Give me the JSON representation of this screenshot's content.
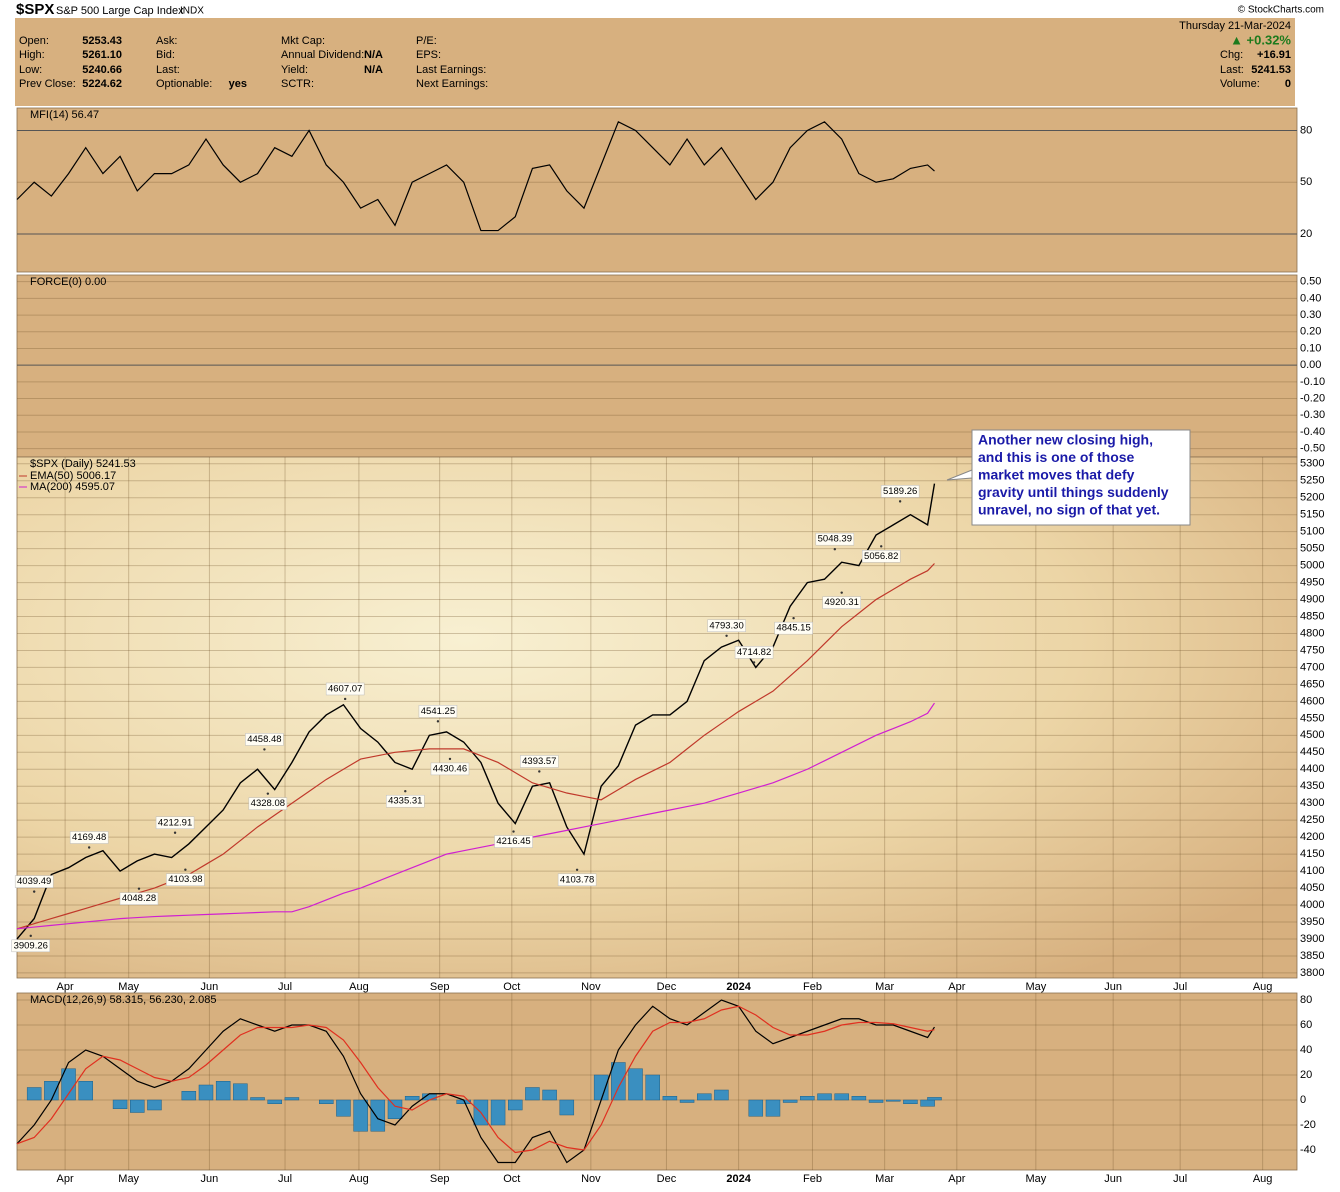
{
  "header": {
    "symbol": "$SPX",
    "name": "S&P 500 Large Cap Index",
    "exchange": "INDX",
    "columns": [
      [
        {
          "label": "Open:",
          "value": "5253.43"
        },
        {
          "label": "High:",
          "value": "5261.10"
        },
        {
          "label": "Low:",
          "value": "5240.66"
        },
        {
          "label": "Prev Close:",
          "value": "5224.62"
        }
      ],
      [
        {
          "label": "Ask:"
        },
        {
          "label": "Bid:"
        },
        {
          "label": "Last:"
        },
        {
          "label": "Optionable:",
          "value": "yes"
        }
      ],
      [
        {
          "label": "Mkt Cap:"
        },
        {
          "label": "Annual Dividend:",
          "value": "N/A"
        },
        {
          "label": "Yield:",
          "value": "N/A"
        },
        {
          "label": "SCTR:"
        }
      ],
      [
        {
          "label": "P/E:"
        },
        {
          "label": "EPS:"
        },
        {
          "label": "Last Earnings:"
        },
        {
          "label": "Next Earnings:"
        }
      ]
    ],
    "date": "Thursday  21-Mar-2024",
    "change_pct": "▲ +0.32%",
    "right": [
      {
        "label": "Chg:",
        "value": "+16.91"
      },
      {
        "label": "Last:",
        "value": "5241.53"
      },
      {
        "label": "Volume:",
        "value": "0"
      }
    ],
    "copyright": "© StockCharts.com"
  },
  "chart_data": [
    {
      "type": "line",
      "legend": "MFI(14) 56.47",
      "xlim": [
        0,
        74.5
      ],
      "ylim": [
        -2,
        93
      ],
      "yticks": [
        20,
        50,
        80
      ],
      "x": [
        0,
        1,
        2,
        3,
        4,
        5,
        6,
        7,
        8,
        9,
        10,
        11,
        12,
        13,
        14,
        15,
        16,
        17,
        18,
        19,
        20,
        21,
        22,
        23,
        24,
        25,
        26,
        27,
        28,
        29,
        30,
        31,
        32,
        33,
        34,
        35,
        36,
        37,
        38,
        39,
        40,
        41,
        42,
        43,
        44,
        45,
        46,
        47,
        48,
        49,
        50,
        51,
        52,
        53,
        53.4
      ],
      "series": [
        {
          "color": "#000000",
          "values": [
            40,
            50,
            42,
            55,
            70,
            55,
            65,
            45,
            55,
            55,
            60,
            75,
            60,
            50,
            55,
            70,
            65,
            80,
            60,
            50,
            35,
            40,
            25,
            50,
            55,
            60,
            50,
            22,
            22,
            30,
            58,
            60,
            45,
            35,
            60,
            85,
            80,
            70,
            60,
            75,
            60,
            70,
            55,
            40,
            50,
            70,
            80,
            85,
            75,
            55,
            50,
            52,
            58,
            60,
            56.47
          ]
        }
      ]
    },
    {
      "type": "line",
      "legend": "FORCE(0) 0.00",
      "ylim": [
        -0.55,
        0.54
      ],
      "yticks": [
        {
          "value": 0.5,
          "label": "0.50"
        },
        {
          "value": 0.4,
          "label": "0.40"
        },
        {
          "value": 0.3,
          "label": "0.30"
        },
        {
          "value": 0.2,
          "label": "0.20"
        },
        {
          "value": 0.1,
          "label": "0.10"
        },
        {
          "value": 0,
          "label": "0.00"
        },
        {
          "value": -0.1,
          "label": "-0.10"
        },
        {
          "value": -0.2,
          "label": "-0.20"
        },
        {
          "value": -0.3,
          "label": "-0.30"
        },
        {
          "value": -0.4,
          "label": "-0.40"
        },
        {
          "value": -0.5,
          "label": "-0.50"
        }
      ],
      "series": []
    },
    {
      "type": "line",
      "legend": "$SPX (Daily) 5241.53",
      "legend_extra": [
        {
          "text": "EMA(50) 5006.17",
          "color": "#c0392b"
        },
        {
          "text": "MA(200) 4595.07",
          "color": "#d020d0"
        }
      ],
      "xlim": [
        0,
        74.5
      ],
      "ylim": [
        3785,
        5320
      ],
      "yticks": [
        3800,
        3850,
        3900,
        3950,
        4000,
        4050,
        4100,
        4150,
        4200,
        4250,
        4300,
        4350,
        4400,
        4450,
        4500,
        4550,
        4600,
        4650,
        4700,
        4750,
        4800,
        4850,
        4900,
        4950,
        5000,
        5050,
        5100,
        5150,
        5200,
        5250,
        5300
      ],
      "xticks": [
        {
          "value": 2.8,
          "label": "Apr"
        },
        {
          "value": 6.5,
          "label": "May"
        },
        {
          "value": 11.2,
          "label": "Jun"
        },
        {
          "value": 15.6,
          "label": "Jul"
        },
        {
          "value": 19.9,
          "label": "Aug"
        },
        {
          "value": 24.6,
          "label": "Sep"
        },
        {
          "value": 28.8,
          "label": "Oct"
        },
        {
          "value": 33.4,
          "label": "Nov"
        },
        {
          "value": 37.8,
          "label": "Dec"
        },
        {
          "value": 42.0,
          "label": "2024"
        },
        {
          "value": 46.3,
          "label": "Feb"
        },
        {
          "value": 50.5,
          "label": "Mar"
        },
        {
          "value": 54.7,
          "label": "Apr"
        },
        {
          "value": 59.3,
          "label": "May"
        },
        {
          "value": 63.8,
          "label": "Jun"
        },
        {
          "value": 67.7,
          "label": "Jul"
        },
        {
          "value": 72.5,
          "label": "Aug"
        }
      ],
      "x": [
        0,
        1,
        2,
        3,
        4,
        5,
        6,
        7,
        8,
        9,
        10,
        11,
        12,
        13,
        14,
        15,
        16,
        17,
        18,
        19,
        20,
        21,
        22,
        23,
        24,
        25,
        26,
        27,
        28,
        29,
        30,
        31,
        32,
        33,
        34,
        35,
        36,
        37,
        38,
        39,
        40,
        41,
        42,
        43,
        44,
        45,
        46,
        47,
        48,
        49,
        50,
        51,
        52,
        53,
        53.4
      ],
      "series": [
        {
          "color": "#000000",
          "values": [
            3900,
            3960,
            4090,
            4110,
            4140,
            4160,
            4100,
            4130,
            4150,
            4140,
            4180,
            4230,
            4280,
            4360,
            4400,
            4340,
            4420,
            4510,
            4560,
            4590,
            4520,
            4480,
            4420,
            4400,
            4500,
            4510,
            4480,
            4420,
            4300,
            4240,
            4350,
            4360,
            4230,
            4150,
            4350,
            4410,
            4530,
            4560,
            4560,
            4600,
            4720,
            4760,
            4780,
            4700,
            4760,
            4880,
            4950,
            4960,
            5010,
            5000,
            5090,
            5120,
            5150,
            5120,
            5241.53
          ]
        },
        {
          "color": "#c0392b",
          "values": [
            3930,
            3945,
            3960,
            3975,
            3990,
            4005,
            4020,
            4035,
            4050,
            4070,
            4090,
            4120,
            4150,
            4190,
            4230,
            4265,
            4300,
            4335,
            4370,
            4400,
            4430,
            4440,
            4450,
            4455,
            4460,
            4460,
            4460,
            4440,
            4420,
            4390,
            4360,
            4345,
            4330,
            4320,
            4310,
            4340,
            4370,
            4395,
            4420,
            4460,
            4500,
            4535,
            4570,
            4600,
            4630,
            4675,
            4720,
            4770,
            4820,
            4860,
            4900,
            4930,
            4960,
            4985,
            5006.17
          ]
        },
        {
          "color": "#d020d0",
          "values": [
            3930,
            3935,
            3940,
            3945,
            3950,
            3955,
            3960,
            3963,
            3966,
            3968,
            3970,
            3972,
            3974,
            3976,
            3978,
            3980,
            3980,
            3995,
            4015,
            4035,
            4050,
            4070,
            4090,
            4110,
            4130,
            4150,
            4160,
            4170,
            4180,
            4190,
            4200,
            4210,
            4220,
            4230,
            4240,
            4250,
            4260,
            4270,
            4280,
            4290,
            4300,
            4315,
            4330,
            4345,
            4360,
            4380,
            4400,
            4425,
            4450,
            4475,
            4500,
            4520,
            4540,
            4565,
            4595.07
          ]
        }
      ],
      "annotations": [
        {
          "x": 1.0,
          "value": 4039.49,
          "label": "4039.49"
        },
        {
          "x": 0.8,
          "value": 3909.26,
          "label": "3909.26"
        },
        {
          "x": 4.2,
          "value": 4169.48,
          "label": "4169.48"
        },
        {
          "x": 7.1,
          "value": 4048.28,
          "label": "4048.28"
        },
        {
          "x": 9.2,
          "value": 4212.91,
          "label": "4212.91"
        },
        {
          "x": 9.8,
          "value": 4103.98,
          "label": "4103.98"
        },
        {
          "x": 14.4,
          "value": 4458.48,
          "label": "4458.48"
        },
        {
          "x": 14.6,
          "value": 4328.08,
          "label": "4328.08"
        },
        {
          "x": 19.1,
          "value": 4607.07,
          "label": "4607.07"
        },
        {
          "x": 22.6,
          "value": 4335.31,
          "label": "4335.31"
        },
        {
          "x": 24.5,
          "value": 4541.25,
          "label": "4541.25"
        },
        {
          "x": 25.2,
          "value": 4430.46,
          "label": "4430.46"
        },
        {
          "x": 30.4,
          "value": 4393.57,
          "label": "4393.57"
        },
        {
          "x": 28.9,
          "value": 4216.45,
          "label": "4216.45"
        },
        {
          "x": 32.6,
          "value": 4103.78,
          "label": "4103.78"
        },
        {
          "x": 41.3,
          "value": 4793.3,
          "label": "4793.30"
        },
        {
          "x": 42.9,
          "value": 4714.82,
          "label": "4714.82"
        },
        {
          "x": 45.2,
          "value": 4845.15,
          "label": "4845.15"
        },
        {
          "x": 47.6,
          "value": 5048.39,
          "label": "5048.39"
        },
        {
          "x": 48.0,
          "value": 4920.31,
          "label": "4920.31"
        },
        {
          "x": 50.3,
          "value": 5056.82,
          "label": "5056.82"
        },
        {
          "x": 51.4,
          "value": 5189.26,
          "label": "5189.26"
        }
      ],
      "callout": [
        "Another new closing high,",
        "and this is one of those",
        "market moves that defy",
        "gravity until things suddenly",
        "unravel, no sign of that yet."
      ]
    },
    {
      "type": "line",
      "legend": "MACD(12,26,9) 58.315, 56.230, 2.085",
      "xlim": [
        0,
        74.5
      ],
      "ylim": [
        -56,
        85.6
      ],
      "yticks": [
        -40,
        -20,
        0,
        20,
        40,
        60,
        80
      ],
      "xticks": [
        {
          "value": 2.8,
          "label": "Apr"
        },
        {
          "value": 6.5,
          "label": "May"
        },
        {
          "value": 11.2,
          "label": "Jun"
        },
        {
          "value": 15.6,
          "label": "Jul"
        },
        {
          "value": 19.9,
          "label": "Aug"
        },
        {
          "value": 24.6,
          "label": "Sep"
        },
        {
          "value": 28.8,
          "label": "Oct"
        },
        {
          "value": 33.4,
          "label": "Nov"
        },
        {
          "value": 37.8,
          "label": "Dec"
        },
        {
          "value": 42.0,
          "label": "2024"
        },
        {
          "value": 46.3,
          "label": "Feb"
        },
        {
          "value": 50.5,
          "label": "Mar"
        },
        {
          "value": 54.7,
          "label": "Apr"
        },
        {
          "value": 59.3,
          "label": "May"
        },
        {
          "value": 63.8,
          "label": "Jun"
        },
        {
          "value": 67.7,
          "label": "Jul"
        },
        {
          "value": 72.5,
          "label": "Aug"
        }
      ],
      "x": [
        0,
        1,
        2,
        3,
        4,
        5,
        6,
        7,
        8,
        9,
        10,
        11,
        12,
        13,
        14,
        15,
        16,
        17,
        18,
        19,
        20,
        21,
        22,
        23,
        24,
        25,
        26,
        27,
        28,
        29,
        30,
        31,
        32,
        33,
        34,
        35,
        36,
        37,
        38,
        39,
        40,
        41,
        42,
        43,
        44,
        45,
        46,
        47,
        48,
        49,
        50,
        51,
        52,
        53,
        53.4
      ],
      "series": [
        {
          "type": "bar",
          "color": "#3a8fc0",
          "values": [
            0,
            10,
            15,
            25,
            15,
            0,
            -7,
            -10,
            -8,
            0,
            7,
            12,
            15,
            13,
            2,
            -3,
            2,
            0,
            -3,
            -13,
            -25,
            -25,
            -15,
            3,
            5,
            0,
            -3,
            -20,
            -20,
            -8,
            10,
            8,
            -12,
            0,
            20,
            30,
            25,
            20,
            3,
            -2,
            5,
            8,
            0,
            -13,
            -13,
            -2,
            3,
            5,
            5,
            3,
            -2,
            -1,
            -3,
            -5,
            2.085
          ]
        },
        {
          "color": "#000000",
          "values": [
            -35,
            -20,
            0,
            30,
            40,
            35,
            25,
            15,
            10,
            15,
            25,
            40,
            55,
            65,
            60,
            55,
            60,
            60,
            55,
            35,
            5,
            -15,
            -20,
            -5,
            5,
            5,
            0,
            -30,
            -50,
            -50,
            -30,
            -25,
            -50,
            -40,
            0,
            40,
            60,
            75,
            65,
            60,
            70,
            80,
            75,
            55,
            45,
            50,
            55,
            60,
            65,
            65,
            60,
            60,
            55,
            50,
            58.315
          ]
        },
        {
          "color": "#e03020",
          "values": [
            -35,
            -30,
            -15,
            5,
            25,
            35,
            32,
            25,
            18,
            15,
            18,
            28,
            40,
            52,
            58,
            58,
            58,
            60,
            58,
            48,
            30,
            10,
            -5,
            -8,
            0,
            5,
            3,
            -10,
            -30,
            -42,
            -40,
            -33,
            -38,
            -40,
            -20,
            10,
            35,
            55,
            62,
            62,
            65,
            72,
            75,
            68,
            58,
            52,
            52,
            55,
            60,
            62,
            62,
            61,
            58,
            55,
            56.23
          ]
        }
      ]
    }
  ]
}
